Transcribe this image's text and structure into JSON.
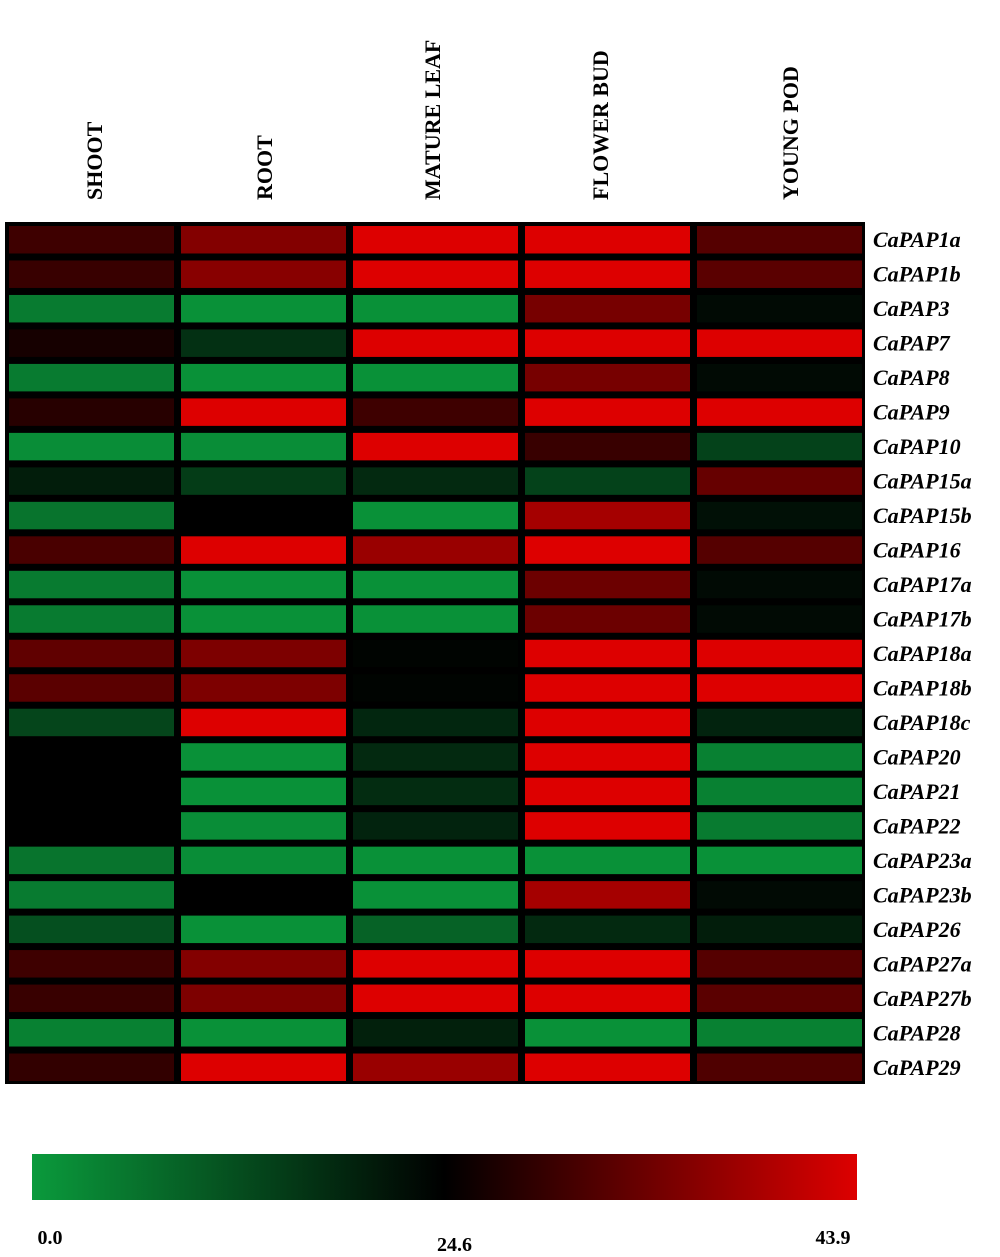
{
  "chart_data": {
    "type": "heatmap",
    "columns": [
      "SHOOT",
      "ROOT",
      "MATURE LEAF",
      "FLOWER BUD",
      "YOUNG POD"
    ],
    "rows": [
      "CaPAP1a",
      "CaPAP1b",
      "CaPAP3",
      "CaPAP7",
      "CaPAP8",
      "CaPAP9",
      "CaPAP10",
      "CaPAP15a",
      "CaPAP15b",
      "CaPAP16",
      "CaPAP17a",
      "CaPAP17b",
      "CaPAP18a",
      "CaPAP18b",
      "CaPAP18c",
      "CaPAP20",
      "CaPAP21",
      "CaPAP22",
      "CaPAP23a",
      "CaPAP23b",
      "CaPAP26",
      "CaPAP27a",
      "CaPAP27b",
      "CaPAP28",
      "CaPAP29"
    ],
    "values": [
      [
        30.0,
        36.0,
        43.9,
        43.9,
        32.0
      ],
      [
        29.5,
        36.5,
        43.9,
        43.9,
        32.5
      ],
      [
        5.0,
        1.5,
        1.5,
        35.0,
        23.0
      ],
      [
        26.5,
        17.0,
        43.9,
        43.9,
        43.9
      ],
      [
        5.0,
        1.5,
        1.5,
        35.0,
        23.0
      ],
      [
        28.0,
        43.9,
        30.0,
        43.9,
        43.9
      ],
      [
        2.0,
        2.0,
        43.9,
        29.5,
        14.0
      ],
      [
        20.0,
        15.0,
        18.0,
        14.0,
        33.5
      ],
      [
        6.0,
        24.6,
        1.5,
        39.0,
        22.0
      ],
      [
        31.0,
        43.9,
        38.0,
        43.9,
        32.0
      ],
      [
        5.0,
        1.5,
        1.5,
        34.0,
        23.0
      ],
      [
        5.0,
        1.5,
        1.5,
        34.0,
        23.0
      ],
      [
        33.0,
        35.5,
        24.0,
        43.9,
        43.9
      ],
      [
        32.5,
        35.5,
        24.0,
        43.9,
        43.9
      ],
      [
        13.5,
        43.9,
        18.5,
        43.9,
        19.0
      ],
      [
        24.6,
        1.5,
        18.0,
        43.9,
        4.0
      ],
      [
        24.6,
        1.5,
        17.5,
        43.9,
        4.0
      ],
      [
        24.6,
        2.0,
        19.0,
        43.9,
        5.0
      ],
      [
        6.0,
        2.0,
        1.5,
        1.5,
        1.5
      ],
      [
        5.0,
        24.6,
        1.5,
        39.0,
        23.0
      ],
      [
        12.0,
        1.5,
        9.0,
        18.0,
        20.0
      ],
      [
        30.0,
        36.0,
        43.9,
        43.9,
        32.0
      ],
      [
        29.5,
        35.5,
        43.9,
        43.9,
        32.5
      ],
      [
        4.0,
        1.5,
        19.5,
        1.5,
        4.0
      ],
      [
        29.0,
        43.9,
        38.0,
        43.9,
        31.5
      ]
    ],
    "colorbar": {
      "min": 0.0,
      "mid": 24.6,
      "max": 43.9,
      "tick_labels": [
        "0.0",
        "24.6",
        "43.9"
      ],
      "low_color": "#0a9a3c",
      "mid_color": "#000000",
      "high_color": "#dd0000"
    }
  }
}
